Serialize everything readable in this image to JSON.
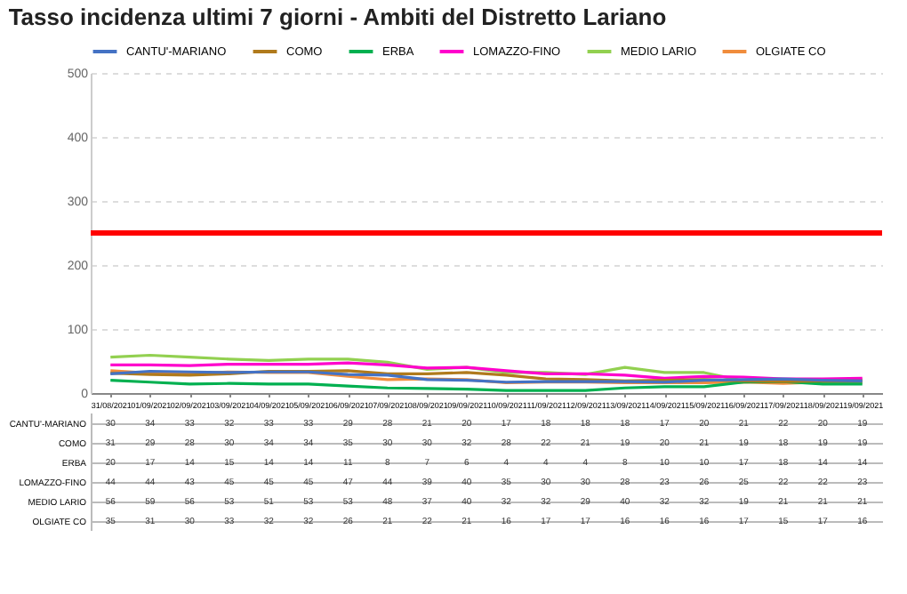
{
  "chart_data": {
    "type": "line",
    "title": "Tasso incidenza ultimi 7 giorni - Ambiti del Distretto Lariano",
    "categories": [
      "31/08/2021",
      "01/09/2021",
      "02/09/2021",
      "03/09/2021",
      "04/09/2021",
      "05/09/2021",
      "06/09/2021",
      "07/09/2021",
      "08/09/2021",
      "09/09/2021",
      "10/09/2021",
      "11/09/2021",
      "12/09/2021",
      "13/09/2021",
      "14/09/2021",
      "15/09/2021",
      "16/09/2021",
      "17/09/2021",
      "18/09/2021",
      "19/09/2021"
    ],
    "series": [
      {
        "name": "CANTU'-MARIANO",
        "color": "#4472c4",
        "values": [
          30,
          34,
          33,
          32,
          33,
          33,
          29,
          28,
          21,
          20,
          17,
          18,
          18,
          18,
          17,
          20,
          21,
          22,
          20,
          19
        ]
      },
      {
        "name": "COMO",
        "color": "#b07a1c",
        "values": [
          31,
          29,
          28,
          30,
          34,
          34,
          35,
          30,
          30,
          32,
          28,
          22,
          21,
          19,
          20,
          21,
          19,
          18,
          19,
          19
        ]
      },
      {
        "name": "ERBA",
        "color": "#00b050",
        "values": [
          20,
          17,
          14,
          15,
          14,
          14,
          11,
          8,
          7,
          6,
          4,
          4,
          4,
          8,
          10,
          10,
          17,
          18,
          14,
          14
        ]
      },
      {
        "name": "LOMAZZO-FINO",
        "color": "#ff00cc",
        "values": [
          44,
          44,
          43,
          45,
          45,
          45,
          47,
          44,
          39,
          40,
          35,
          30,
          30,
          28,
          23,
          26,
          25,
          22,
          22,
          23
        ]
      },
      {
        "name": "MEDIO LARIO",
        "color": "#92d050",
        "values": [
          56,
          59,
          56,
          53,
          51,
          53,
          53,
          48,
          37,
          40,
          32,
          32,
          29,
          40,
          32,
          32,
          19,
          21,
          21,
          21
        ]
      },
      {
        "name": "OLGIATE CO",
        "color": "#f08c3c",
        "values": [
          35,
          31,
          30,
          33,
          32,
          32,
          26,
          21,
          22,
          21,
          16,
          17,
          17,
          16,
          16,
          16,
          17,
          15,
          17,
          16
        ]
      }
    ],
    "ylim": [
      0,
      500
    ],
    "yticks": [
      0,
      100,
      200,
      300,
      400,
      500
    ],
    "grid": "y",
    "legend": "top",
    "data_labels": true,
    "line_style": "solid",
    "ref_lines": [
      {
        "axis": "y",
        "value": 250,
        "color": "#ff0000"
      }
    ]
  }
}
